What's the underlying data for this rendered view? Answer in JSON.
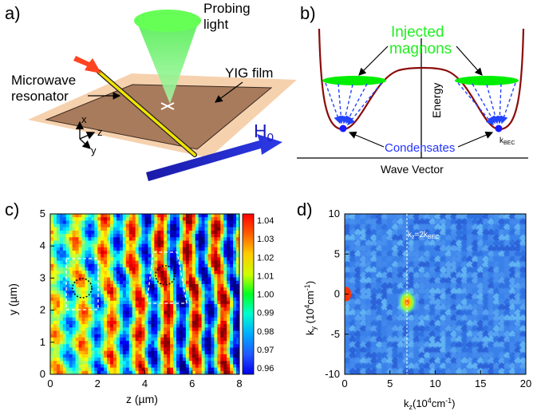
{
  "panel_a": {
    "label": "a)",
    "probing_light": [
      "Probing",
      "light"
    ],
    "microwave_resonator": [
      "Microwave",
      "resonator"
    ],
    "yig_film": "YIG film",
    "axis_x": "x",
    "axis_z": "z",
    "axis_y": "y",
    "field_label": "H",
    "field_sub": "0"
  },
  "panel_b": {
    "label": "b)",
    "injected_magnons": [
      "Injected",
      "magnons"
    ],
    "energy_label": "Energy",
    "condensates": "Condensates",
    "kbec": "k",
    "kbec_sub": "BEC",
    "wave_vector": "Wave Vector"
  },
  "panel_c": {
    "label": "c)",
    "xlabel": "z (µm)",
    "ylabel": "y (µm)",
    "xticks": [
      "0",
      "2",
      "4",
      "6",
      "8"
    ],
    "yticks": [
      "0",
      "1",
      "2",
      "3",
      "4",
      "5"
    ],
    "colorbar_ticks": [
      "1.04",
      "1.03",
      "1.02",
      "1.01",
      "1.00",
      "0.99",
      "0.98",
      "0.97",
      "0.96"
    ]
  },
  "panel_d": {
    "label": "d)",
    "xlabel": "k",
    "xlabel_sub": "z",
    "xlabel_rest": "(10",
    "xlabel_sup": "4",
    "xlabel_end": "cm",
    "xlabel_sup2": "-1",
    "xlabel_close": ")",
    "ylabel": "k",
    "ylabel_sub": "y",
    "ylabel_rest": " (10",
    "ylabel_sup": "4",
    "ylabel_end": "cm",
    "ylabel_sup2": "-1",
    "ylabel_close": ")",
    "xticks": [
      "0",
      "5",
      "10",
      "15",
      "20"
    ],
    "yticks": [
      "10",
      "5",
      "0",
      "-5",
      "-10"
    ],
    "annotation": "k",
    "annotation_sub": "z",
    "annotation_rest": "=2k",
    "annotation_sub2": "BEC"
  },
  "chart_data": [
    {
      "type": "heatmap",
      "panel": "c",
      "xlabel": "z (µm)",
      "ylabel": "y (µm)",
      "xlim": [
        0,
        8
      ],
      "ylim": [
        0,
        5
      ],
      "colorbar_range": [
        0.96,
        1.04
      ],
      "colors": {
        "low": "#0000ff",
        "mid": "#00ff00",
        "high": "#ff0000"
      }
    },
    {
      "type": "heatmap",
      "panel": "d",
      "xlabel": "kz (10^4 cm^-1)",
      "ylabel": "ky (10^4 cm^-1)",
      "xlim": [
        0,
        20
      ],
      "ylim": [
        -10,
        10
      ],
      "annotation_line_x": 6.9,
      "annotation": "kz=2kBEC",
      "peak": {
        "x": 6.9,
        "y": -1
      }
    }
  ]
}
